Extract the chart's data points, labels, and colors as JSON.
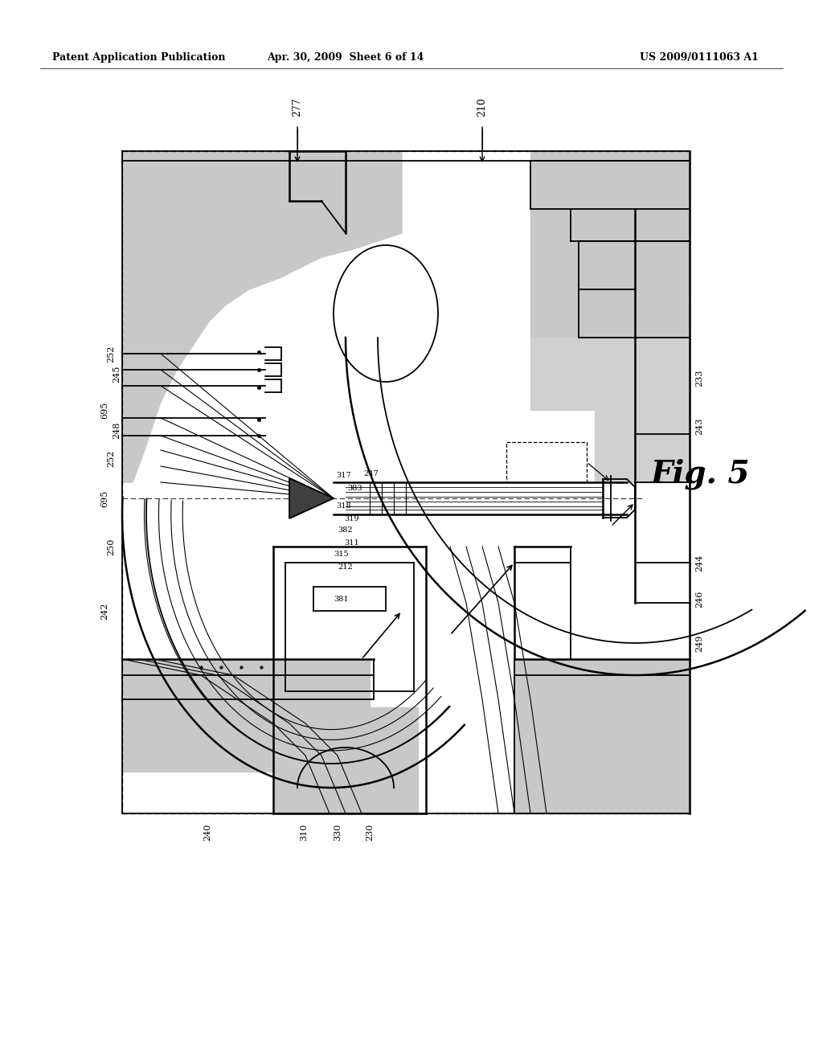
{
  "bg_color": "#ffffff",
  "header_left": "Patent Application Publication",
  "header_mid": "Apr. 30, 2009  Sheet 6 of 14",
  "header_right": "US 2009/0111063 A1",
  "fig_label": "Fig. 5",
  "fig_width": 10.24,
  "fig_height": 13.2,
  "dpi": 100
}
